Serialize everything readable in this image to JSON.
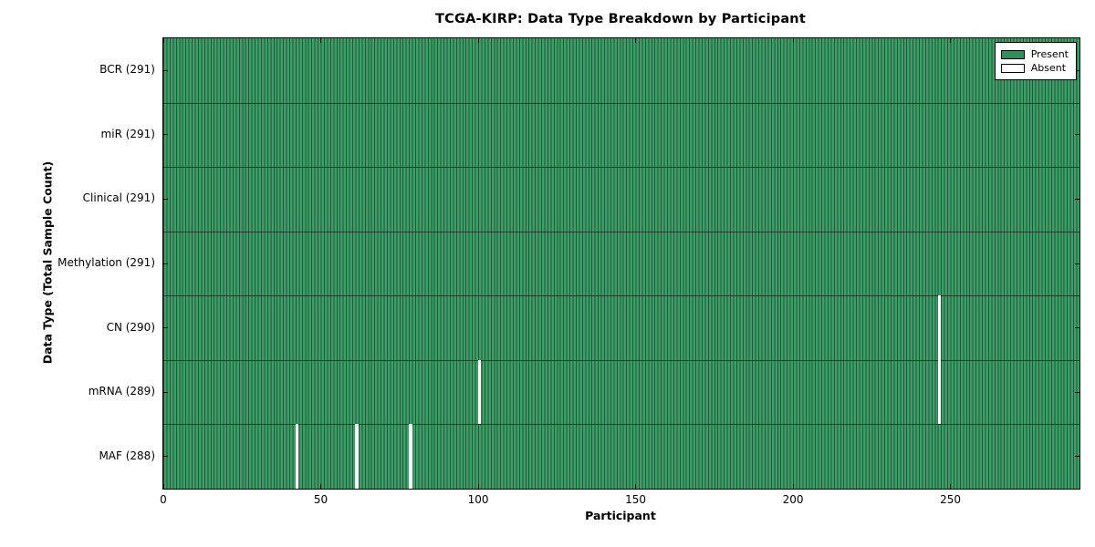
{
  "chart_data": {
    "type": "heatmap",
    "title": "TCGA-KIRP: Data Type Breakdown by Participant",
    "xlabel": "Participant",
    "ylabel": "Data Type (Total Sample Count)",
    "x_range": [
      0,
      291
    ],
    "x_ticks": [
      0,
      50,
      100,
      150,
      200,
      250
    ],
    "n_participants": 291,
    "grid": true,
    "legend_position": "upper right",
    "rows": [
      {
        "data_type": "BCR",
        "total_samples": 291,
        "label": "BCR (291)",
        "absent_participants": []
      },
      {
        "data_type": "miR",
        "total_samples": 291,
        "label": "miR (291)",
        "absent_participants": []
      },
      {
        "data_type": "Clinical",
        "total_samples": 291,
        "label": "Clinical (291)",
        "absent_participants": []
      },
      {
        "data_type": "Methylation",
        "total_samples": 291,
        "label": "Methylation (291)",
        "absent_participants": []
      },
      {
        "data_type": "CN",
        "total_samples": 290,
        "label": "CN (290)",
        "absent_participants": [
          246
        ]
      },
      {
        "data_type": "mRNA",
        "total_samples": 289,
        "label": "mRNA (289)",
        "absent_participants": [
          100,
          246
        ]
      },
      {
        "data_type": "MAF",
        "total_samples": 288,
        "label": "MAF (288)",
        "absent_participants": [
          42,
          61,
          78
        ]
      }
    ],
    "legend": [
      {
        "label": "Present",
        "color": "#2f8f5b"
      },
      {
        "label": "Absent",
        "color": "#ffffff"
      }
    ],
    "colors": {
      "present_fill": "#3f9e68",
      "present_edge": "#1c5a3a",
      "absent": "#ffffff",
      "separator": "rgba(0,0,0,0.55)",
      "axis": "#000000",
      "background": "#ffffff"
    }
  }
}
